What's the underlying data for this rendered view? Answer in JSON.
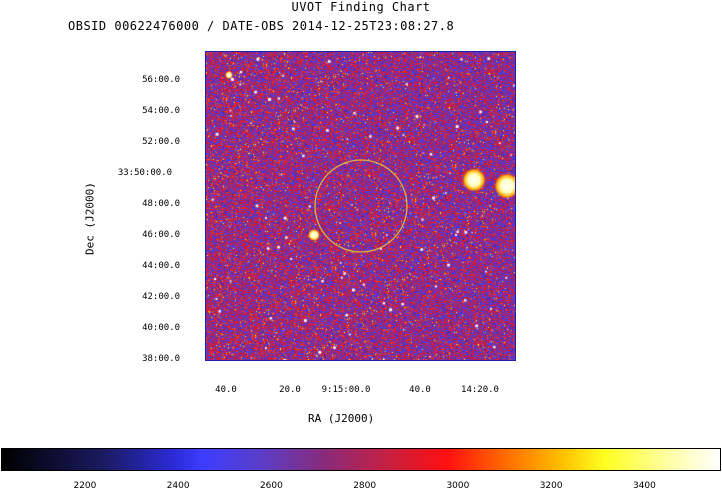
{
  "chart_data": {
    "type": "heatmap",
    "title": "UVOT Finding Chart",
    "subtitle": "OBSID 00622476000 / DATE-OBS 2014-12-25T23:08:27.8",
    "xlabel": "RA (J2000)",
    "ylabel": "Dec (J2000)",
    "x_ticks": [
      "40.0",
      "20.0",
      "9:15:00.0",
      "40.0",
      "14:20.0"
    ],
    "y_ticks": [
      "56:00.0",
      "54:00.0",
      "52:00.0",
      "33:50:00.0",
      "48:00.0",
      "46:00.0",
      "44:00.0",
      "42:00.0",
      "40:00.0",
      "38:00.0"
    ],
    "colorbar": {
      "ticks": [
        "2200",
        "2400",
        "2600",
        "2800",
        "3000",
        "3200",
        "3400"
      ],
      "range": [
        2020,
        3560
      ],
      "colormap": "blue-red-yellow-white"
    },
    "colors": {
      "frame": "#2020b0",
      "circle": "#e0b040"
    }
  }
}
